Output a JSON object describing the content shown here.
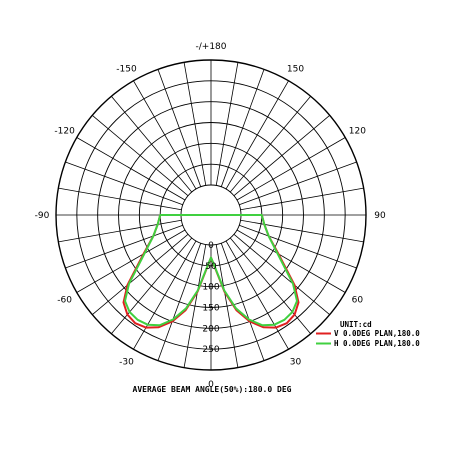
{
  "chart_data": {
    "type": "polar",
    "title": "AVERAGE BEAM ANGLE(50%):180.0 DEG",
    "unit_label": "UNIT:cd",
    "angle_tick_labels": [
      "0",
      "30",
      "60",
      "90",
      "120",
      "150",
      "-/+180",
      "-150",
      "-120",
      "-90",
      "-60",
      "-30"
    ],
    "radial_tick_labels": [
      "0",
      "50",
      "100",
      "150",
      "200",
      "250"
    ],
    "radial_max": 300,
    "grid": true,
    "legend_position": "right",
    "series": [
      {
        "name": "V 0.0DEG PLAN,180.0",
        "color": "#e02020",
        "angles": [
          -90,
          -80,
          -70,
          -60,
          -50,
          -45,
          -40,
          -35,
          -30,
          -25,
          -20,
          -15,
          -10,
          -5,
          0,
          5,
          10,
          15,
          20,
          25,
          30,
          35,
          40,
          45,
          50,
          60,
          70,
          80,
          90
        ],
        "values": [
          50,
          58,
          75,
          115,
          190,
          225,
          240,
          245,
          240,
          225,
          200,
          165,
          115,
          60,
          30,
          60,
          115,
          165,
          200,
          225,
          240,
          245,
          240,
          225,
          190,
          115,
          75,
          58,
          50
        ]
      },
      {
        "name": "H 0.0DEG PLAN,180.0",
        "color": "#40d040",
        "angles": [
          -90,
          -80,
          -70,
          -60,
          -50,
          -45,
          -40,
          -35,
          -30,
          -25,
          -20,
          -15,
          -10,
          -5,
          0,
          5,
          10,
          15,
          20,
          25,
          30,
          35,
          40,
          45,
          50,
          60,
          70,
          80,
          90
        ],
        "values": [
          50,
          58,
          75,
          112,
          185,
          220,
          232,
          235,
          232,
          220,
          195,
          160,
          112,
          58,
          30,
          58,
          112,
          160,
          195,
          220,
          232,
          235,
          232,
          220,
          185,
          112,
          75,
          58,
          50
        ]
      }
    ]
  }
}
